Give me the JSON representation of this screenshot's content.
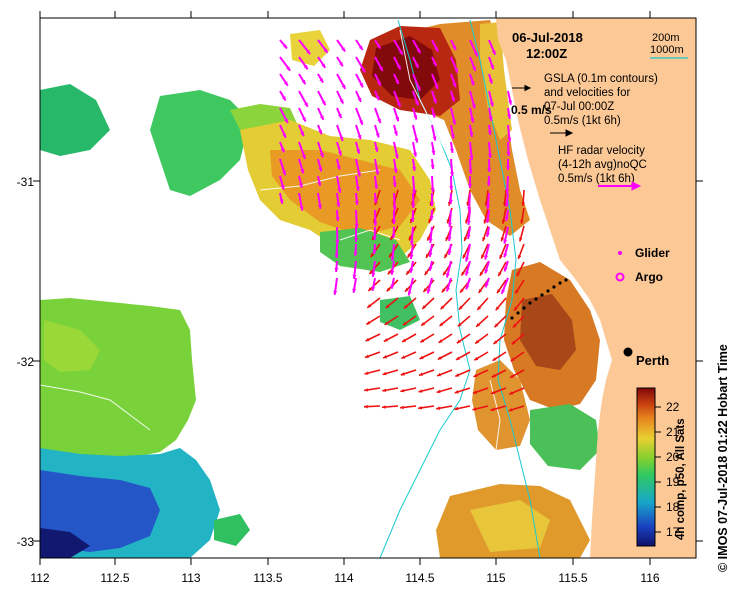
{
  "header": {
    "date": "06-Jul-2018",
    "time": "12:00Z"
  },
  "depth_legend": {
    "line1": "200m",
    "line2": "1000m",
    "color": "#18c8d0"
  },
  "gsla_legend": {
    "line1": "GSLA (0.1m contours)",
    "line2": "and velocities for",
    "line3": "07-Jul 00:00Z",
    "line4": "0.5m/s (1kt 6h)"
  },
  "overlay_label": "0.5 m/s",
  "radar_legend": {
    "line1": "HF radar velocity",
    "line2": "(4-12h avg)noQC",
    "line3": "0.5m/s (1kt 6h)",
    "color": "#ff00ff"
  },
  "markers": {
    "glider": "Glider",
    "argo": "Argo",
    "city": "Perth"
  },
  "axes": {
    "x_ticks": [
      "112",
      "112.5",
      "113",
      "113.5",
      "114",
      "114.5",
      "115",
      "115.5",
      "116"
    ],
    "y_ticks": [
      "-31",
      "-32",
      "-33"
    ]
  },
  "colorbar": {
    "label": "4h comp, p50, All Sats",
    "ticks": [
      "22",
      "21",
      "20",
      "19",
      "18",
      "17"
    ],
    "range": [
      16.5,
      22.9
    ]
  },
  "credit": "© IMOS 07-Jul-2018 01:22 Hobart Time",
  "colors": {
    "land": "#fcc896",
    "current_arrows": "#ee1111",
    "radar_arrows": "#ff00ff"
  }
}
